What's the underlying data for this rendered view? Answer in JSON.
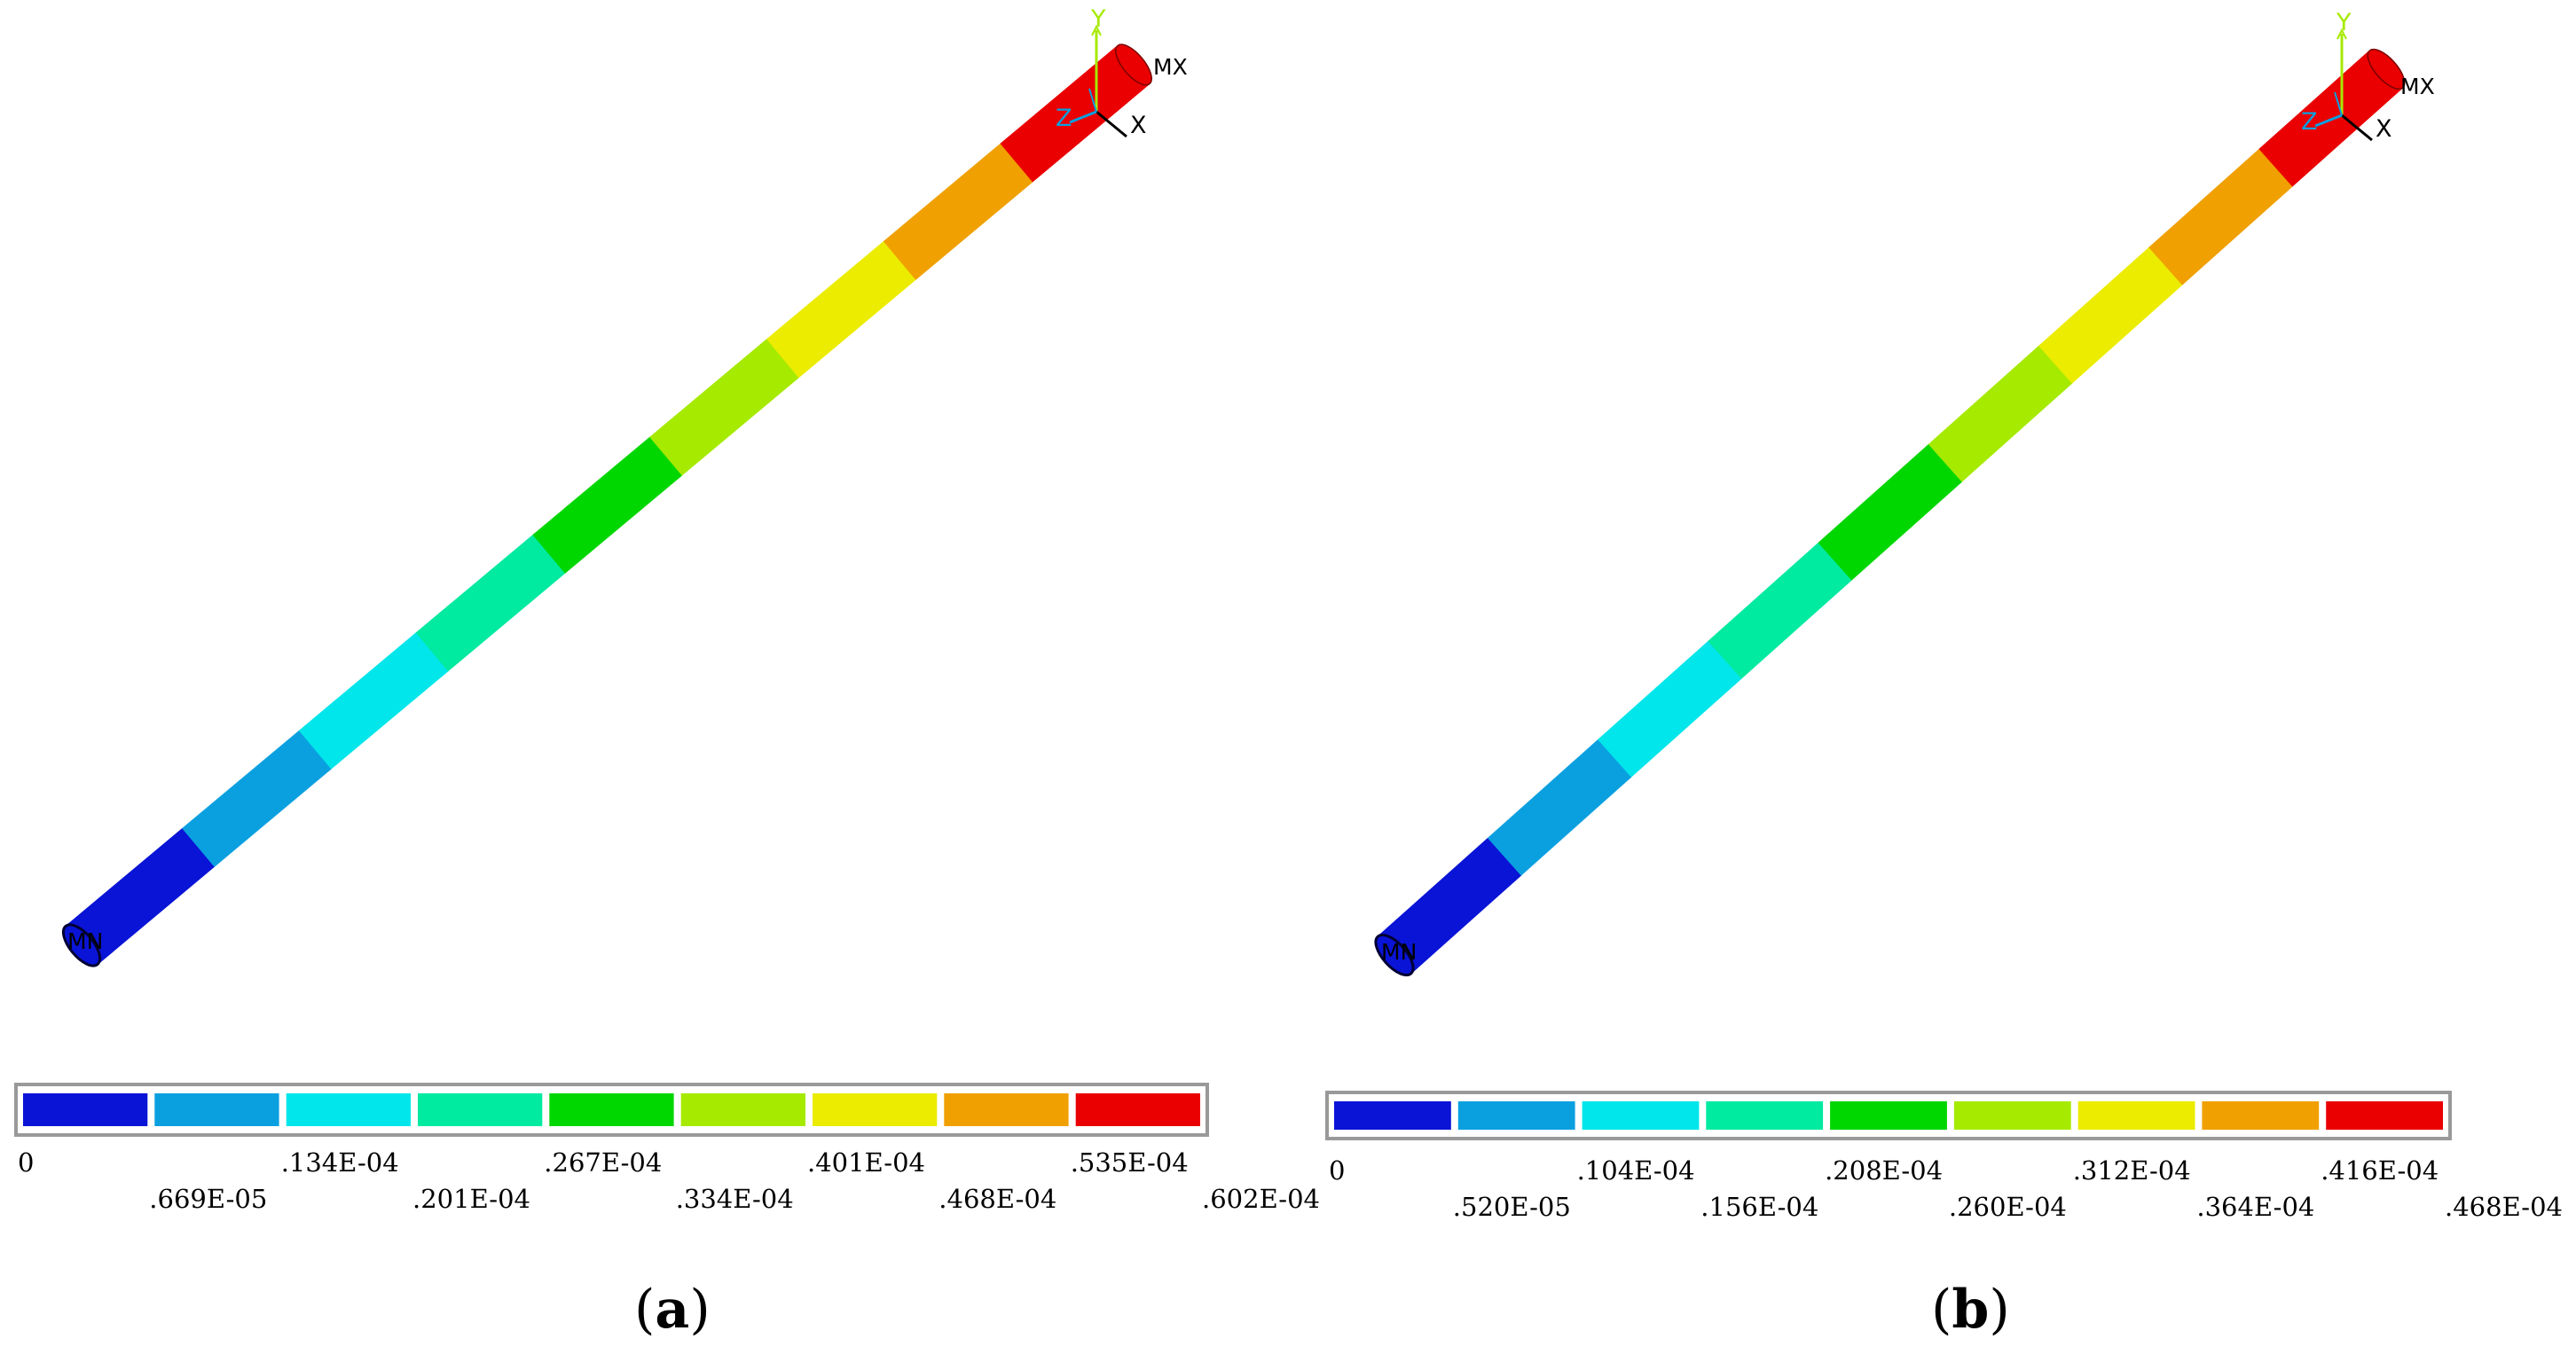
{
  "colors": {
    "bands": [
      "#0a14d6",
      "#0aa0e0",
      "#00e6ea",
      "#00eaa0",
      "#00d600",
      "#a6ea00",
      "#ecec00",
      "#f0a000",
      "#ea0000"
    ],
    "axis_y": "#a6ea00",
    "axis_z": "#0aa0e0",
    "axis_x": "#000000",
    "legend_border": "#999999"
  },
  "icons": [
    "triad-axes-icon"
  ],
  "panels": [
    {
      "id": "a",
      "caption_open": "(",
      "caption_letter": "a",
      "caption_close": ")",
      "max_label": "MX",
      "min_label": "MN",
      "axis_labels": {
        "x": "X",
        "y": "Y",
        "z": "Z"
      },
      "legend_ticks": [
        "0",
        ".669E-05",
        ".134E-04",
        ".201E-04",
        ".267E-04",
        ".334E-04",
        ".401E-04",
        ".468E-04",
        ".535E-04",
        ".602E-04"
      ]
    },
    {
      "id": "b",
      "caption_open": "(",
      "caption_letter": "b",
      "caption_close": ")",
      "max_label": "MX",
      "min_label": "MN",
      "axis_labels": {
        "x": "X",
        "y": "Y",
        "z": "Z"
      },
      "legend_ticks": [
        "0",
        ".520E-05",
        ".104E-04",
        ".156E-04",
        ".208E-04",
        ".260E-04",
        ".312E-04",
        ".364E-04",
        ".416E-04",
        ".468E-04"
      ]
    }
  ]
}
